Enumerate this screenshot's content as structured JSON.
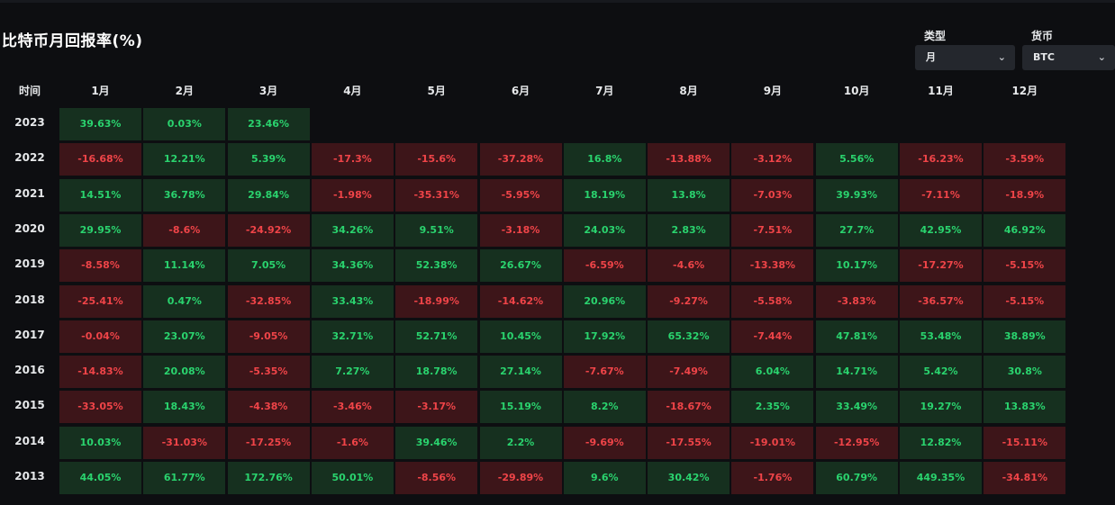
{
  "title": "比特币月回报率(%)",
  "controls": {
    "type_label": "类型",
    "type_value": "月",
    "currency_label": "货币",
    "currency_value": "BTC"
  },
  "colors": {
    "positive_bg": "#16301f",
    "positive_text": "#2ad36e",
    "negative_bg": "#3d1519",
    "negative_text": "#ef4448"
  },
  "chart_data": {
    "type": "heatmap",
    "row_header": "时间",
    "columns": [
      "1月",
      "2月",
      "3月",
      "4月",
      "5月",
      "6月",
      "7月",
      "8月",
      "9月",
      "10月",
      "11月",
      "12月"
    ],
    "rows": [
      {
        "year": "2023",
        "values": [
          "39.63%",
          "0.03%",
          "23.46%"
        ]
      },
      {
        "year": "2022",
        "values": [
          "-16.68%",
          "12.21%",
          "5.39%",
          "-17.3%",
          "-15.6%",
          "-37.28%",
          "16.8%",
          "-13.88%",
          "-3.12%",
          "5.56%",
          "-16.23%",
          "-3.59%"
        ]
      },
      {
        "year": "2021",
        "values": [
          "14.51%",
          "36.78%",
          "29.84%",
          "-1.98%",
          "-35.31%",
          "-5.95%",
          "18.19%",
          "13.8%",
          "-7.03%",
          "39.93%",
          "-7.11%",
          "-18.9%"
        ]
      },
      {
        "year": "2020",
        "values": [
          "29.95%",
          "-8.6%",
          "-24.92%",
          "34.26%",
          "9.51%",
          "-3.18%",
          "24.03%",
          "2.83%",
          "-7.51%",
          "27.7%",
          "42.95%",
          "46.92%"
        ]
      },
      {
        "year": "2019",
        "values": [
          "-8.58%",
          "11.14%",
          "7.05%",
          "34.36%",
          "52.38%",
          "26.67%",
          "-6.59%",
          "-4.6%",
          "-13.38%",
          "10.17%",
          "-17.27%",
          "-5.15%"
        ]
      },
      {
        "year": "2018",
        "values": [
          "-25.41%",
          "0.47%",
          "-32.85%",
          "33.43%",
          "-18.99%",
          "-14.62%",
          "20.96%",
          "-9.27%",
          "-5.58%",
          "-3.83%",
          "-36.57%",
          "-5.15%"
        ]
      },
      {
        "year": "2017",
        "values": [
          "-0.04%",
          "23.07%",
          "-9.05%",
          "32.71%",
          "52.71%",
          "10.45%",
          "17.92%",
          "65.32%",
          "-7.44%",
          "47.81%",
          "53.48%",
          "38.89%"
        ]
      },
      {
        "year": "2016",
        "values": [
          "-14.83%",
          "20.08%",
          "-5.35%",
          "7.27%",
          "18.78%",
          "27.14%",
          "-7.67%",
          "-7.49%",
          "6.04%",
          "14.71%",
          "5.42%",
          "30.8%"
        ]
      },
      {
        "year": "2015",
        "values": [
          "-33.05%",
          "18.43%",
          "-4.38%",
          "-3.46%",
          "-3.17%",
          "15.19%",
          "8.2%",
          "-18.67%",
          "2.35%",
          "33.49%",
          "19.27%",
          "13.83%"
        ]
      },
      {
        "year": "2014",
        "values": [
          "10.03%",
          "-31.03%",
          "-17.25%",
          "-1.6%",
          "39.46%",
          "2.2%",
          "-9.69%",
          "-17.55%",
          "-19.01%",
          "-12.95%",
          "12.82%",
          "-15.11%"
        ]
      },
      {
        "year": "2013",
        "values": [
          "44.05%",
          "61.77%",
          "172.76%",
          "50.01%",
          "-8.56%",
          "-29.89%",
          "9.6%",
          "30.42%",
          "-1.76%",
          "60.79%",
          "449.35%",
          "-34.81%"
        ]
      }
    ]
  }
}
